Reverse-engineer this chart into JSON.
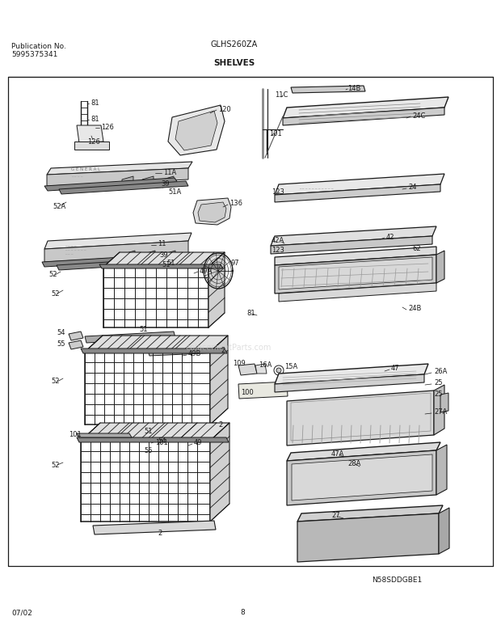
{
  "title": "SHELVES",
  "model": "GLHS260ZA",
  "pub_no": "Publication No.",
  "pub_num": "5995375341",
  "date": "07/02",
  "page": "8",
  "diagram_id": "N58SDDGBE1",
  "bg_color": "#ffffff",
  "line_color": "#1a1a1a",
  "text_color": "#1a1a1a",
  "gray_fill": "#d8d8d8",
  "dark_fill": "#aaaaaa",
  "light_fill": "#eeeeee"
}
